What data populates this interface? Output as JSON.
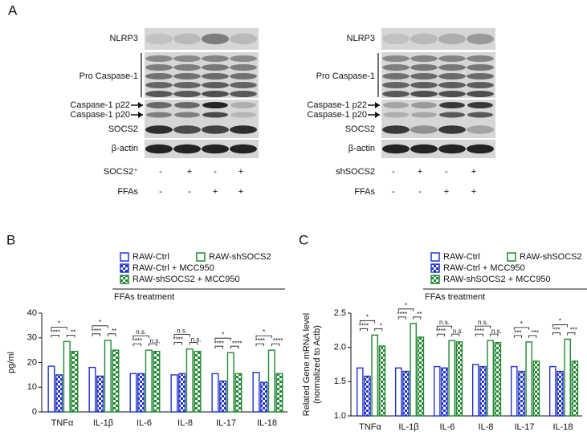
{
  "panel_a": {
    "label": "A",
    "blots": [
      {
        "rows": [
          "NLRP3",
          "Pro Caspase-1",
          "Caspase-1 p22",
          "Caspase-1 p20",
          "SOCS2",
          "β-actin"
        ],
        "treatments": [
          {
            "label": "SOCS2⁺",
            "signs": [
              "-",
              "+",
              "-",
              "+"
            ]
          },
          {
            "label": "FFAs",
            "signs": [
              "-",
              "-",
              "+",
              "+"
            ]
          }
        ]
      },
      {
        "rows": [
          "NLRP3",
          "Pro Caspase-1",
          "Caspase-1 p22",
          "Caspase-1 p20",
          "SOCS2",
          "β-actin"
        ],
        "treatments": [
          {
            "label": "shSOCS2",
            "signs": [
              "-",
              "+",
              "-",
              "+"
            ]
          },
          {
            "label": "FFAs",
            "signs": [
              "-",
              "-",
              "+",
              "+"
            ]
          }
        ]
      }
    ]
  },
  "chart_data": [
    {
      "type": "bar",
      "panel_label": "B",
      "y_label": [
        "pg/ml"
      ],
      "legend_note": "FFAs treatment",
      "categories": [
        "TNFα",
        "IL-1β",
        "IL-6",
        "IL-8",
        "IL-17",
        "IL-18"
      ],
      "series": [
        {
          "name": "RAW-Ctrl",
          "color": "#2233cc",
          "fill": "hollow",
          "values": [
            18.5,
            18,
            15.5,
            15,
            15.5,
            16
          ]
        },
        {
          "name": "RAW-Ctrl + MCC950",
          "color": "#2233cc",
          "fill": "checkered",
          "values": [
            15,
            14.5,
            15.5,
            15.5,
            12.5,
            12
          ]
        },
        {
          "name": "RAW-shSOCS2",
          "color": "#228833",
          "fill": "hollow",
          "values": [
            28.5,
            29,
            25,
            25.5,
            24,
            25
          ]
        },
        {
          "name": "RAW-shSOCS2 + MCC950",
          "color": "#228833",
          "fill": "checkered",
          "values": [
            24.5,
            25,
            24.5,
            24.5,
            15.5,
            15.5
          ]
        }
      ],
      "significance": [
        [
          "*",
          "****",
          "**"
        ],
        [
          "*",
          "****",
          "**"
        ],
        [
          "n.s.",
          "****",
          "n.s."
        ],
        [
          "n.s.",
          "****",
          "n.s."
        ],
        [
          "*",
          "****",
          "****"
        ],
        [
          "*",
          "****",
          "****"
        ]
      ],
      "ylim": [
        0,
        40
      ],
      "yticks": [
        0,
        10,
        20,
        30,
        40
      ]
    },
    {
      "type": "bar",
      "panel_label": "C",
      "y_label": [
        "Related Gene mRNA level",
        "(normalized to Actb)"
      ],
      "legend_note": "FFAs treatment",
      "categories": [
        "TNFα",
        "IL-1β",
        "IL-6",
        "IL-8",
        "IL-17",
        "IL-18"
      ],
      "series": [
        {
          "name": "RAW-Ctrl",
          "color": "#2233cc",
          "fill": "hollow",
          "values": [
            1.7,
            1.7,
            1.72,
            1.75,
            1.72,
            1.72
          ]
        },
        {
          "name": "RAW-Ctrl + MCC950",
          "color": "#2233cc",
          "fill": "checkered",
          "values": [
            1.58,
            1.65,
            1.7,
            1.72,
            1.65,
            1.65
          ]
        },
        {
          "name": "RAW-shSOCS2",
          "color": "#228833",
          "fill": "hollow",
          "values": [
            2.18,
            2.35,
            2.1,
            2.1,
            2.08,
            2.12
          ]
        },
        {
          "name": "RAW-shSOCS2 + MCC950",
          "color": "#228833",
          "fill": "checkered",
          "values": [
            2.02,
            2.15,
            2.08,
            2.07,
            1.8,
            1.8
          ]
        }
      ],
      "significance": [
        [
          "*",
          "****",
          "*"
        ],
        [
          "*",
          "****",
          "**"
        ],
        [
          "n.s.",
          "****",
          "n.s."
        ],
        [
          "n.s.",
          "****",
          "n.s."
        ],
        [
          "*",
          "***",
          "***"
        ],
        [
          "*",
          "***",
          "***"
        ]
      ],
      "ylim": [
        1,
        2.5
      ],
      "yticks": [
        {
          "value": 1,
          "label": "1.0"
        },
        1.5,
        {
          "value": 2,
          "label": "2.0"
        },
        2.5
      ]
    }
  ]
}
